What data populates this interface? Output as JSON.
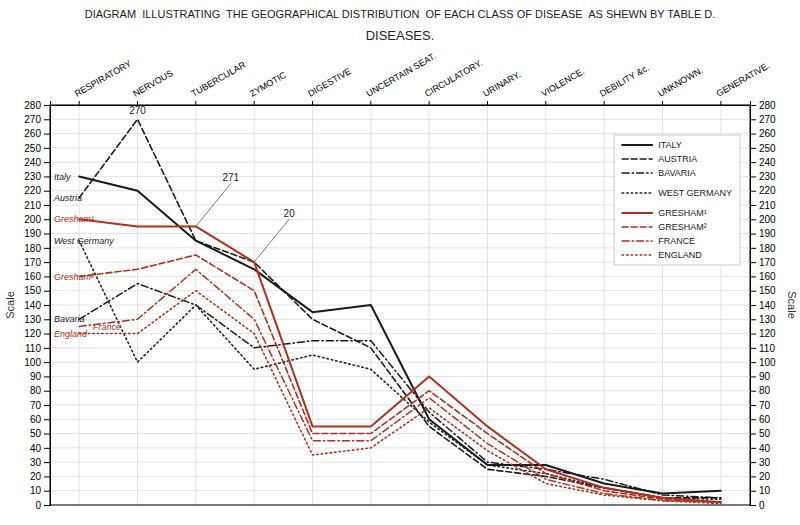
{
  "chart_data": {
    "type": "line",
    "title": "DIAGRAM  ILLUSTRATING  THE GEOGRAPHICAL DISTRIBUTION  OF EACH CLASS OF DISEASE  AS SHEWN BY TABLE D.",
    "subtitle": "DISEASES.",
    "y_label": "Scale",
    "y2_label": "Scale",
    "categories": [
      "RESPIRATORY",
      "NERVOUS",
      "TUBERCULAR",
      "ZYMOTIC",
      "DIGESTIVE",
      "UNCERTAIN SEAT.",
      "CIRCULATORY.",
      "URINARY.",
      "VIOLENCE.",
      "DEBILITY &c.",
      "UNKNOWN.",
      "GENERATIVE."
    ],
    "series": [
      {
        "name": "ITALY",
        "color": "#1a1a1a",
        "line_style": "solid",
        "values": [
          230,
          220,
          185,
          165,
          135,
          140,
          60,
          28,
          28,
          15,
          8,
          10
        ]
      },
      {
        "name": "AUSTRIA",
        "color": "#1a1a1a",
        "line_style": "dashed",
        "values": [
          215,
          270,
          185,
          170,
          130,
          110,
          55,
          25,
          20,
          12,
          5,
          5
        ]
      },
      {
        "name": "BAVARIA",
        "color": "#1a1a1a",
        "line_style": "dashdot",
        "values": [
          130,
          155,
          140,
          110,
          115,
          115,
          65,
          30,
          25,
          18,
          7,
          5
        ]
      },
      {
        "name": "WEST GERMANY",
        "color": "#222222",
        "line_style": "dotted",
        "values": [
          185,
          100,
          140,
          95,
          105,
          95,
          58,
          28,
          22,
          12,
          5,
          4
        ]
      },
      {
        "name": "GRESHAM¹",
        "color": "#b03020",
        "line_style": "solid",
        "values": [
          200,
          195,
          195,
          170,
          55,
          55,
          90,
          55,
          25,
          12,
          5,
          2
        ]
      },
      {
        "name": "GRESHAM²",
        "color": "#b03020",
        "line_style": "dashed",
        "values": [
          160,
          165,
          175,
          150,
          50,
          50,
          80,
          50,
          22,
          10,
          4,
          2
        ]
      },
      {
        "name": "FRANCE",
        "color": "#b03020",
        "line_style": "dashdot",
        "values": [
          125,
          130,
          165,
          130,
          45,
          45,
          75,
          43,
          18,
          8,
          3,
          2
        ]
      },
      {
        "name": "ENGLAND",
        "color": "#b03020",
        "line_style": "dotted",
        "values": [
          120,
          120,
          150,
          120,
          35,
          40,
          68,
          38,
          15,
          7,
          3,
          1
        ]
      }
    ],
    "ylim": [
      0,
      280
    ],
    "yticks": [
      0,
      10,
      20,
      30,
      40,
      50,
      60,
      70,
      80,
      90,
      100,
      110,
      120,
      130,
      140,
      150,
      160,
      170,
      180,
      190,
      200,
      210,
      220,
      230,
      240,
      250,
      260,
      270,
      280
    ],
    "y2lim": [
      0,
      280
    ],
    "y2ticks": [
      0,
      10,
      20,
      30,
      40,
      50,
      60,
      70,
      80,
      90,
      100,
      110,
      120,
      130,
      140,
      150,
      160,
      170,
      180,
      190,
      200,
      210,
      220,
      230,
      240,
      250,
      260,
      270,
      280
    ],
    "grid": true,
    "legend": "upper right",
    "annotations": [
      {
        "text": "Italy",
        "y": 230,
        "color": "#1a1a1a"
      },
      {
        "text": "Austria",
        "y": 215,
        "color": "#1a1a1a"
      },
      {
        "text": "Gresham¹",
        "y": 200,
        "color": "#b03020"
      },
      {
        "text": "West Germany",
        "y": 185,
        "color": "#1a1a1a"
      },
      {
        "text": "Gresham²",
        "y": 160,
        "color": "#b03020"
      },
      {
        "text": "Bavaria",
        "y": 130,
        "color": "#1a1a1a"
      },
      {
        "text": "England",
        "y": 120,
        "color": "#b03020"
      },
      {
        "text": "France",
        "y": 125,
        "color": "#b03020"
      },
      {
        "text": "270",
        "x": "NERVOUS",
        "y": 270
      },
      {
        "text": "271",
        "x": "TUBERCULAR",
        "y": 195
      },
      {
        "text": "20",
        "x": "ZYMOTIC",
        "y": 170
      }
    ]
  }
}
